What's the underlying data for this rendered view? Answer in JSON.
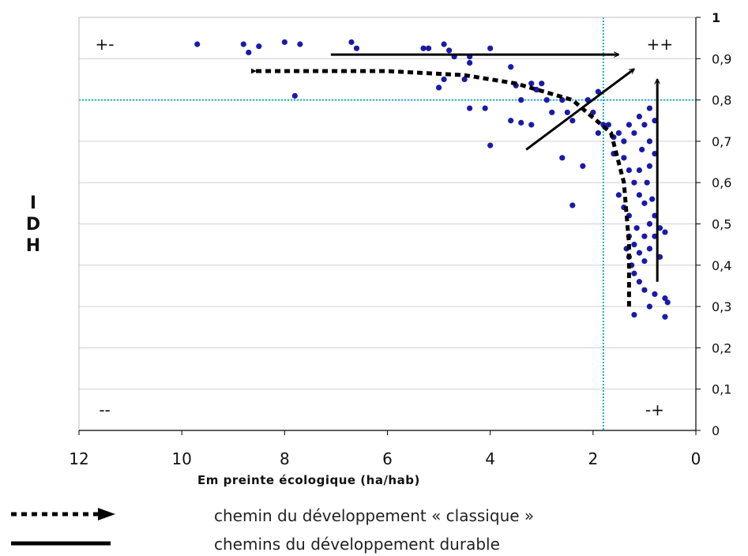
{
  "chart_data": {
    "type": "scatter",
    "xlabel": "Em preinte écologique (ha/hab)",
    "ylabel": [
      "I",
      "D",
      "H"
    ],
    "x_axis": {
      "reversed": true,
      "range": [
        0,
        12
      ],
      "ticks": [
        "12",
        "10",
        "8",
        "6",
        "4",
        "2",
        "0"
      ],
      "tick_values": [
        12,
        10,
        8,
        6,
        4,
        2,
        0
      ]
    },
    "y_axis": {
      "position": "right",
      "range": [
        0,
        1
      ],
      "ticks": [
        "0",
        "0,1",
        "0,2",
        "0,3",
        "0,4",
        "0,5",
        "0,6",
        "0,7",
        "0,8",
        "0,9",
        "1"
      ],
      "tick_values": [
        0,
        0.1,
        0.2,
        0.3,
        0.4,
        0.5,
        0.6,
        0.7,
        0.8,
        0.9,
        1
      ]
    },
    "grid": "horizontal",
    "reference_lines": {
      "x": 1.8,
      "y": 0.8,
      "color": "#1ab0c8"
    },
    "quadrant_labels": [
      {
        "text": "+-",
        "x": 11.5,
        "y": 0.935
      },
      {
        "text": "++",
        "x": 0.7,
        "y": 0.935
      },
      {
        "text": "--",
        "x": 11.5,
        "y": 0.05
      },
      {
        "text": "-+",
        "x": 0.8,
        "y": 0.05
      }
    ],
    "series": [
      {
        "color": "#1a1aa8",
        "points": [
          [
            9.7,
            0.935
          ],
          [
            8.8,
            0.935
          ],
          [
            8.7,
            0.915
          ],
          [
            8.5,
            0.93
          ],
          [
            8.0,
            0.94
          ],
          [
            7.7,
            0.935
          ],
          [
            7.8,
            0.81
          ],
          [
            6.7,
            0.94
          ],
          [
            6.6,
            0.925
          ],
          [
            5.3,
            0.925
          ],
          [
            5.2,
            0.925
          ],
          [
            4.9,
            0.935
          ],
          [
            4.8,
            0.92
          ],
          [
            4.7,
            0.905
          ],
          [
            4.4,
            0.905
          ],
          [
            4.4,
            0.89
          ],
          [
            4.5,
            0.85
          ],
          [
            4.0,
            0.925
          ],
          [
            4.1,
            0.78
          ],
          [
            4.0,
            0.69
          ],
          [
            4.4,
            0.78
          ],
          [
            4.9,
            0.85
          ],
          [
            5.0,
            0.83
          ],
          [
            3.5,
            0.835
          ],
          [
            3.6,
            0.88
          ],
          [
            3.2,
            0.84
          ],
          [
            3.1,
            0.825
          ],
          [
            3.0,
            0.84
          ],
          [
            3.4,
            0.8
          ],
          [
            3.6,
            0.75
          ],
          [
            3.4,
            0.745
          ],
          [
            3.2,
            0.74
          ],
          [
            2.9,
            0.8
          ],
          [
            2.8,
            0.77
          ],
          [
            2.6,
            0.8
          ],
          [
            2.6,
            0.66
          ],
          [
            2.5,
            0.77
          ],
          [
            2.4,
            0.75
          ],
          [
            2.2,
            0.64
          ],
          [
            2.4,
            0.545
          ],
          [
            2.1,
            0.8
          ],
          [
            2.0,
            0.77
          ],
          [
            1.9,
            0.82
          ],
          [
            1.8,
            0.74
          ],
          [
            1.9,
            0.72
          ],
          [
            1.7,
            0.74
          ],
          [
            1.6,
            0.71
          ],
          [
            1.6,
            0.67
          ],
          [
            1.5,
            0.72
          ],
          [
            1.4,
            0.7
          ],
          [
            1.3,
            0.74
          ],
          [
            1.2,
            0.72
          ],
          [
            1.1,
            0.76
          ],
          [
            1.0,
            0.74
          ],
          [
            0.9,
            0.7
          ],
          [
            0.9,
            0.78
          ],
          [
            0.8,
            0.75
          ],
          [
            1.4,
            0.66
          ],
          [
            1.3,
            0.63
          ],
          [
            1.2,
            0.6
          ],
          [
            1.1,
            0.63
          ],
          [
            0.9,
            0.64
          ],
          [
            0.8,
            0.67
          ],
          [
            1.5,
            0.57
          ],
          [
            1.4,
            0.54
          ],
          [
            1.3,
            0.52
          ],
          [
            1.1,
            0.57
          ],
          [
            1.0,
            0.55
          ],
          [
            0.9,
            0.5
          ],
          [
            0.8,
            0.52
          ],
          [
            1.3,
            0.47
          ],
          [
            1.2,
            0.45
          ],
          [
            1.1,
            0.43
          ],
          [
            1.0,
            0.41
          ],
          [
            0.9,
            0.44
          ],
          [
            0.8,
            0.47
          ],
          [
            0.7,
            0.42
          ],
          [
            0.6,
            0.48
          ],
          [
            0.7,
            0.49
          ],
          [
            1.3,
            0.42
          ],
          [
            1.2,
            0.38
          ],
          [
            1.1,
            0.36
          ],
          [
            1.0,
            0.34
          ],
          [
            0.8,
            0.33
          ],
          [
            1.2,
            0.28
          ],
          [
            0.9,
            0.3
          ],
          [
            0.6,
            0.32
          ],
          [
            0.6,
            0.275
          ],
          [
            0.55,
            0.31
          ],
          [
            1.35,
            0.44
          ],
          [
            1.25,
            0.4
          ],
          [
            1.0,
            0.47
          ],
          [
            1.15,
            0.49
          ],
          [
            0.95,
            0.6
          ],
          [
            1.05,
            0.68
          ],
          [
            0.85,
            0.56
          ]
        ]
      }
    ],
    "arrows": [
      {
        "style": "dashed",
        "path": [
          [
            1.3,
            0.3
          ],
          [
            1.3,
            0.45
          ],
          [
            1.4,
            0.6
          ],
          [
            1.65,
            0.72
          ],
          [
            2.4,
            0.8
          ],
          [
            3.5,
            0.84
          ],
          [
            4.5,
            0.86
          ],
          [
            6.0,
            0.87
          ],
          [
            8.6,
            0.87
          ]
        ]
      },
      {
        "style": "solid",
        "path": [
          [
            7.1,
            0.91
          ],
          [
            1.5,
            0.91
          ]
        ]
      },
      {
        "style": "solid",
        "path": [
          [
            3.3,
            0.68
          ],
          [
            1.2,
            0.875
          ]
        ]
      },
      {
        "style": "solid",
        "path": [
          [
            0.75,
            0.36
          ],
          [
            0.75,
            0.85
          ]
        ]
      }
    ]
  },
  "legend": [
    {
      "style": "dashed",
      "label": "chemin du développement « classique »"
    },
    {
      "style": "solid",
      "label": "chemins du développement durable"
    }
  ],
  "colors": {
    "points": "#1a1aa8",
    "reference": "#1ab0c8",
    "arrows": "#000000",
    "grid": "#d0d0d0"
  }
}
